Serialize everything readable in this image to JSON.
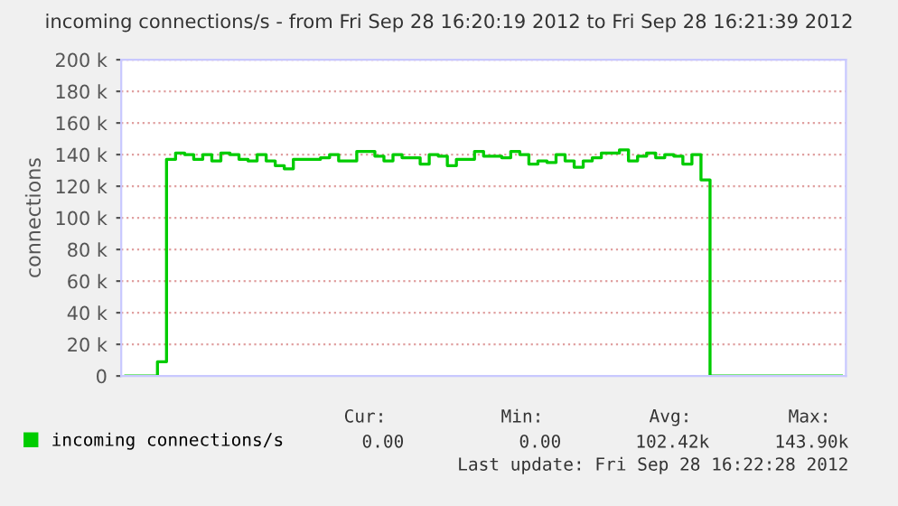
{
  "chart_data": {
    "type": "step",
    "title": "incoming connections/s - from Fri Sep 28 16:20:19 2012 to Fri Sep 28 16:21:39 2012",
    "ylabel": "connections",
    "categories": [
      null,
      null,
      null,
      null,
      null,
      null,
      null,
      null,
      null,
      null,
      null,
      null,
      null,
      null,
      null,
      null,
      null,
      null,
      null,
      null,
      null,
      null,
      null,
      null,
      null,
      null,
      null,
      null,
      null,
      null,
      null,
      null,
      null,
      null,
      null,
      null,
      null,
      null,
      null,
      null,
      null,
      null,
      null,
      null,
      null,
      null,
      null,
      null,
      null,
      null,
      null,
      null,
      null,
      null,
      null,
      null,
      null,
      null,
      null,
      null,
      null,
      null,
      null,
      null,
      null,
      null,
      null,
      null,
      null,
      null,
      null,
      null,
      null,
      null,
      null,
      null,
      null,
      null,
      null,
      null
    ],
    "series": [
      {
        "name": "incoming connections/s",
        "color": "#00cc00",
        "values": [
          0,
          0,
          0,
          0,
          9000,
          137000,
          141000,
          140000,
          137000,
          140000,
          136000,
          141000,
          140000,
          137000,
          136000,
          140000,
          136000,
          133000,
          131000,
          137000,
          137000,
          137000,
          138000,
          140000,
          136000,
          136000,
          142000,
          142000,
          139000,
          136000,
          140000,
          138000,
          138000,
          134000,
          140000,
          139000,
          133000,
          137000,
          137000,
          142000,
          139000,
          139000,
          138000,
          142000,
          140000,
          134000,
          136000,
          135000,
          140000,
          136000,
          132000,
          136000,
          138000,
          141000,
          141000,
          143000,
          136000,
          139000,
          141000,
          138000,
          140000,
          139000,
          134000,
          140000,
          124000,
          0,
          0,
          0,
          0,
          0,
          0,
          0,
          0,
          0,
          0,
          0,
          0,
          0,
          0,
          0
        ]
      }
    ],
    "ylim": [
      0,
      200000
    ],
    "yticks": [
      0,
      {
        "value": 20000,
        "label": "20 k"
      },
      {
        "value": 40000,
        "label": "40 k"
      },
      {
        "value": 60000,
        "label": "60 k"
      },
      {
        "value": 80000,
        "label": "80 k"
      },
      {
        "value": 100000,
        "label": "100 k"
      },
      {
        "value": 120000,
        "label": "120 k"
      },
      {
        "value": 140000,
        "label": "140 k"
      },
      {
        "value": 160000,
        "label": "160 k"
      },
      {
        "value": 180000,
        "label": "180 k"
      },
      {
        "value": 200000,
        "label": "200 k"
      }
    ],
    "grid": "y",
    "legend": "bottom left",
    "annotations": [
      "Cur:",
      "Min:",
      "Avg:",
      "Max:",
      "0.00",
      "0.00",
      "102.42k",
      "143.90k",
      "Last update: Fri Sep 28 16:22:28 2012"
    ]
  }
}
